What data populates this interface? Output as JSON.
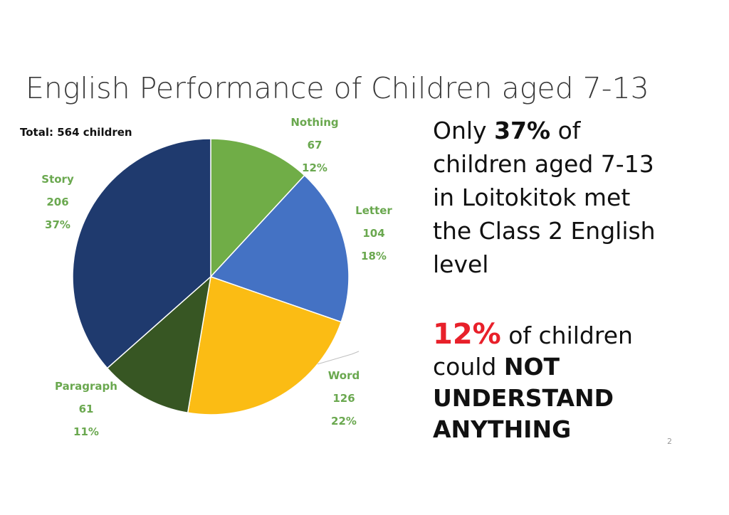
{
  "title": "English Performance of Children aged 7-13",
  "total_label": "Total: 564 children",
  "chart_data": {
    "type": "pie",
    "title": "English Performance of Children aged 7-13",
    "total": 564,
    "slices": [
      {
        "label": "Nothing",
        "value": 67,
        "percent": "12%",
        "color": "#70ad47"
      },
      {
        "label": "Letter",
        "value": 104,
        "percent": "18%",
        "color": "#4472c4"
      },
      {
        "label": "Word",
        "value": 126,
        "percent": "22%",
        "color": "#fbbc14"
      },
      {
        "label": "Paragraph",
        "value": 61,
        "percent": "11%",
        "color": "#375623"
      },
      {
        "label": "Story",
        "value": 206,
        "percent": "37%",
        "color": "#1f3a6e"
      }
    ],
    "label_color": "#6aa84f"
  },
  "side": {
    "line1_pre": "Only ",
    "line1_num": "37%",
    "line1_post": " of",
    "line2": "children aged 7-13",
    "line3": "in Loitokitok met",
    "line4": "the Class 2 English",
    "line5": "level"
  },
  "side2": {
    "num": "12%",
    "line1_post": " of children",
    "line2_pre": "could ",
    "line2_bold": "NOT",
    "line3": "UNDERSTAND",
    "line4": "ANYTHING",
    "num_color": "#e8202a"
  },
  "page_number": "2"
}
